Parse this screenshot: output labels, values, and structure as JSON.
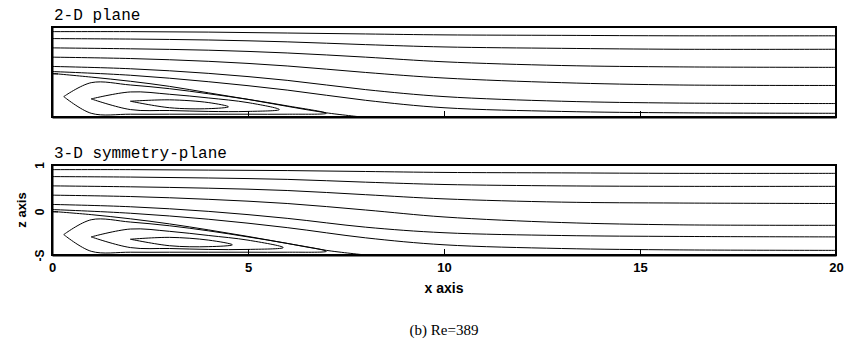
{
  "chart_data": [
    {
      "type": "streamline",
      "title": "2-D plane",
      "xlim": [
        0,
        20
      ],
      "xticks": [
        0,
        5,
        10,
        15,
        20
      ],
      "ylim": [
        -0.94,
        1
      ],
      "yticks": [
        {
          "value": -0.94,
          "label": "-S"
        },
        0,
        1
      ],
      "tick_labels": false,
      "color": "#000000",
      "series": [
        {
          "x": [
            0,
            2,
            4,
            6,
            8,
            10,
            13,
            16,
            20
          ],
          "values": [
            0.9,
            0.9,
            0.89,
            0.87,
            0.85,
            0.83,
            0.82,
            0.81,
            0.81
          ]
        },
        {
          "x": [
            0,
            2,
            4,
            6,
            8,
            10,
            13,
            16,
            20
          ],
          "values": [
            0.75,
            0.74,
            0.72,
            0.68,
            0.62,
            0.57,
            0.54,
            0.52,
            0.52
          ]
        },
        {
          "x": [
            0,
            2,
            4,
            6,
            8,
            10,
            13,
            16,
            20
          ],
          "values": [
            0.55,
            0.53,
            0.5,
            0.44,
            0.35,
            0.25,
            0.17,
            0.14,
            0.13
          ]
        },
        {
          "x": [
            0,
            2,
            4,
            6,
            8,
            10,
            13,
            16,
            20
          ],
          "values": [
            0.35,
            0.32,
            0.26,
            0.16,
            0.02,
            -0.1,
            -0.2,
            -0.25,
            -0.26
          ]
        },
        {
          "x": [
            0,
            2,
            4,
            6,
            8,
            10,
            13,
            16,
            20
          ],
          "values": [
            0.15,
            0.1,
            0.0,
            -0.15,
            -0.35,
            -0.5,
            -0.6,
            -0.64,
            -0.65
          ]
        },
        {
          "x": [
            0,
            2,
            4,
            6,
            8,
            10,
            13,
            16,
            20
          ],
          "values": [
            0.04,
            -0.04,
            -0.18,
            -0.36,
            -0.58,
            -0.74,
            -0.82,
            -0.85,
            -0.86
          ]
        },
        {
          "x": [
            0,
            1,
            2,
            3,
            4,
            5,
            6,
            7,
            7.9
          ],
          "values": [
            0,
            -0.08,
            -0.17,
            -0.28,
            -0.42,
            -0.56,
            -0.71,
            -0.85,
            -0.94
          ]
        },
        {
          "x": [
            0.3,
            1,
            2,
            3,
            4,
            5,
            6,
            7,
            6,
            5,
            4,
            3,
            2,
            1,
            0.3
          ],
          "values": [
            -0.5,
            -0.2,
            -0.25,
            -0.33,
            -0.44,
            -0.56,
            -0.7,
            -0.86,
            -0.88,
            -0.88,
            -0.88,
            -0.88,
            -0.88,
            -0.86,
            -0.5
          ]
        },
        {
          "x": [
            1,
            2,
            3,
            4,
            5,
            5.8,
            5,
            4,
            3,
            2,
            1
          ],
          "values": [
            -0.55,
            -0.4,
            -0.45,
            -0.53,
            -0.63,
            -0.78,
            -0.82,
            -0.82,
            -0.8,
            -0.78,
            -0.55
          ]
        },
        {
          "x": [
            2,
            3,
            4,
            4.5,
            4,
            3,
            2
          ],
          "values": [
            -0.6,
            -0.57,
            -0.63,
            -0.72,
            -0.76,
            -0.74,
            -0.6
          ]
        }
      ]
    },
    {
      "type": "streamline",
      "title": "3-D symmetry-plane",
      "xlabel": "x axis",
      "ylabel": "z axis",
      "caption": "(b) Re=389",
      "xlim": [
        0,
        20
      ],
      "xticks": [
        0,
        5,
        10,
        15,
        20
      ],
      "ylim": [
        -0.94,
        1
      ],
      "yticks": [
        {
          "value": -0.94,
          "label": "-S"
        },
        0,
        1
      ],
      "tick_labels": true,
      "color": "#000000",
      "series": [
        {
          "x": [
            0,
            2,
            4,
            6,
            8,
            10,
            13,
            16,
            20
          ],
          "values": [
            0.9,
            0.9,
            0.89,
            0.88,
            0.86,
            0.84,
            0.83,
            0.82,
            0.82
          ]
        },
        {
          "x": [
            0,
            2,
            4,
            6,
            8,
            10,
            13,
            16,
            20
          ],
          "values": [
            0.75,
            0.74,
            0.72,
            0.69,
            0.63,
            0.58,
            0.55,
            0.54,
            0.54
          ]
        },
        {
          "x": [
            0,
            2,
            4,
            6,
            8,
            10,
            13,
            16,
            20
          ],
          "values": [
            0.55,
            0.53,
            0.5,
            0.45,
            0.36,
            0.27,
            0.2,
            0.18,
            0.17
          ]
        },
        {
          "x": [
            0,
            2,
            4,
            6,
            8,
            10,
            13,
            16,
            20
          ],
          "values": [
            0.35,
            0.32,
            0.26,
            0.17,
            0.03,
            -0.12,
            -0.24,
            -0.29,
            -0.3
          ]
        },
        {
          "x": [
            0,
            2,
            4,
            6,
            8,
            10,
            13,
            16,
            20
          ],
          "values": [
            0.15,
            0.1,
            0.0,
            -0.15,
            -0.34,
            -0.46,
            -0.52,
            -0.54,
            -0.55
          ]
        },
        {
          "x": [
            0,
            2,
            4,
            6,
            8,
            10,
            13,
            16,
            20
          ],
          "values": [
            0.04,
            -0.04,
            -0.17,
            -0.35,
            -0.57,
            -0.72,
            -0.8,
            -0.83,
            -0.84
          ]
        },
        {
          "x": [
            0,
            1,
            2,
            3,
            4,
            5,
            6,
            7,
            8
          ],
          "values": [
            0,
            -0.07,
            -0.16,
            -0.27,
            -0.4,
            -0.54,
            -0.69,
            -0.84,
            -0.94
          ]
        },
        {
          "x": [
            0.3,
            1,
            2,
            3,
            4,
            5,
            6,
            7,
            6,
            5,
            4,
            3,
            2,
            1,
            0.3
          ],
          "values": [
            -0.5,
            -0.18,
            -0.23,
            -0.31,
            -0.42,
            -0.55,
            -0.69,
            -0.86,
            -0.88,
            -0.88,
            -0.88,
            -0.88,
            -0.88,
            -0.86,
            -0.5
          ]
        },
        {
          "x": [
            1,
            2,
            3,
            4,
            5,
            5.9,
            5,
            4,
            3,
            2,
            1
          ],
          "values": [
            -0.55,
            -0.38,
            -0.43,
            -0.52,
            -0.62,
            -0.78,
            -0.82,
            -0.82,
            -0.8,
            -0.78,
            -0.55
          ]
        },
        {
          "x": [
            2,
            3,
            4,
            4.6,
            4,
            3,
            2
          ],
          "values": [
            -0.6,
            -0.56,
            -0.62,
            -0.72,
            -0.76,
            -0.74,
            -0.6
          ]
        }
      ]
    }
  ]
}
